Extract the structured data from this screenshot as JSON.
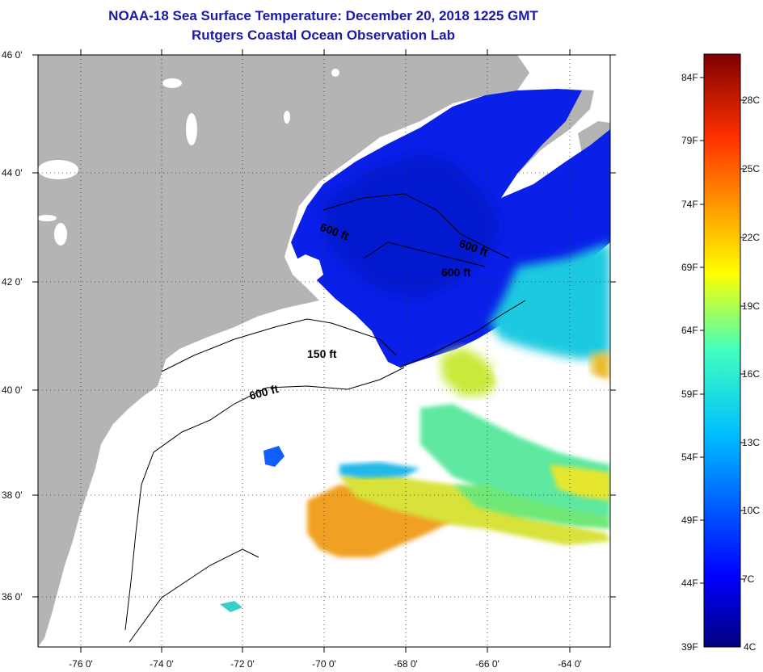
{
  "title": "NOAA-18 Sea Surface Temperature:  December 20, 2018 1225 GMT",
  "subtitle": "Rutgers Coastal Ocean Observation Lab",
  "map": {
    "lat_labels": [
      "46 0'",
      "44 0'",
      "42 0'",
      "40 0'",
      "38 0'",
      "36 0'"
    ],
    "lon_labels": [
      "-76 0'",
      "-74 0'",
      "-72 0'",
      "-70 0'",
      "-68 0'",
      "-66 0'",
      "-64 0'"
    ],
    "contour_labels": [
      "600 ft",
      "600 ft",
      "600 ft",
      "150 ft",
      "600 ft"
    ],
    "colors": {
      "land": "#b4b4b4",
      "ocean_nodata": "#ffffff",
      "grid": "#444444"
    }
  },
  "colorbar": {
    "fahrenheit_labels": [
      "84F",
      "79F",
      "74F",
      "69F",
      "64F",
      "59F",
      "54F",
      "49F",
      "44F",
      "39F"
    ],
    "celsius_labels": [
      "28C",
      "25C",
      "22C",
      "19C",
      "16C",
      "13C",
      "10C",
      "7C",
      "4C"
    ],
    "colors": [
      "#00007f",
      "#0000ff",
      "#007fff",
      "#00ffff",
      "#7fff7f",
      "#ffff00",
      "#ff7f00",
      "#ff0000",
      "#7f0000"
    ]
  }
}
